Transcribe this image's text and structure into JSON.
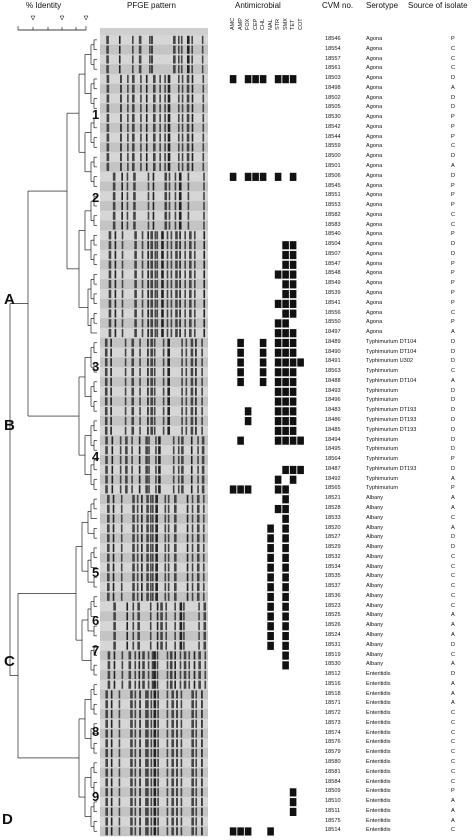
{
  "headers": {
    "identity": "% Identity",
    "pfge": "PFGE pattern",
    "antimicrobial": "Antimicrobial",
    "cvm": "CVM no.",
    "serotype": "Serotype",
    "source": "Source of isolate"
  },
  "antibiotics": [
    "AMC",
    "AMP",
    "FOX",
    "CEP",
    "CHL",
    "NAL",
    "STR",
    "SMX",
    "TET",
    "COT"
  ],
  "clusters": [
    "A",
    "B",
    "C",
    "D"
  ],
  "groups": [
    "1",
    "2",
    "3",
    "4",
    "5",
    "6",
    "7",
    "8",
    "9"
  ],
  "isolates": [
    {
      "cvm": "18546",
      "serotype": "Agona",
      "source": "P",
      "res": []
    },
    {
      "cvm": "18554",
      "serotype": "Agona",
      "source": "C",
      "res": []
    },
    {
      "cvm": "18557",
      "serotype": "Agona",
      "source": "C",
      "res": []
    },
    {
      "cvm": "18561",
      "serotype": "Agona",
      "source": "C",
      "res": []
    },
    {
      "cvm": "18503",
      "serotype": "Agona",
      "source": "D",
      "res": [
        0,
        2,
        3,
        4,
        6,
        7,
        8
      ]
    },
    {
      "cvm": "18498",
      "serotype": "Agona",
      "source": "A",
      "res": []
    },
    {
      "cvm": "18502",
      "serotype": "Agona",
      "source": "D",
      "res": []
    },
    {
      "cvm": "18505",
      "serotype": "Agona",
      "source": "D",
      "res": []
    },
    {
      "cvm": "18530",
      "serotype": "Agona",
      "source": "P",
      "res": []
    },
    {
      "cvm": "18542",
      "serotype": "Agona",
      "source": "P",
      "res": []
    },
    {
      "cvm": "18544",
      "serotype": "Agona",
      "source": "P",
      "res": []
    },
    {
      "cvm": "18559",
      "serotype": "Agona",
      "source": "C",
      "res": []
    },
    {
      "cvm": "18500",
      "serotype": "Agona",
      "source": "D",
      "res": []
    },
    {
      "cvm": "18501",
      "serotype": "Agona",
      "source": "A",
      "res": []
    },
    {
      "cvm": "18506",
      "serotype": "Agona",
      "source": "D",
      "res": [
        0,
        2,
        3,
        4,
        6,
        8
      ]
    },
    {
      "cvm": "18545",
      "serotype": "Agona",
      "source": "P",
      "res": []
    },
    {
      "cvm": "18551",
      "serotype": "Agona",
      "source": "P",
      "res": []
    },
    {
      "cvm": "18553",
      "serotype": "Agona",
      "source": "P",
      "res": []
    },
    {
      "cvm": "18582",
      "serotype": "Agona",
      "source": "C",
      "res": []
    },
    {
      "cvm": "18583",
      "serotype": "Agona",
      "source": "C",
      "res": []
    },
    {
      "cvm": "18540",
      "serotype": "Agona",
      "source": "P",
      "res": []
    },
    {
      "cvm": "18504",
      "serotype": "Agona",
      "source": "D",
      "res": [
        7,
        8
      ]
    },
    {
      "cvm": "18507",
      "serotype": "Agona",
      "source": "D",
      "res": [
        7,
        8
      ]
    },
    {
      "cvm": "18547",
      "serotype": "Agona",
      "source": "P",
      "res": [
        7,
        8
      ]
    },
    {
      "cvm": "18548",
      "serotype": "Agona",
      "source": "P",
      "res": [
        6,
        7,
        8
      ]
    },
    {
      "cvm": "18549",
      "serotype": "Agona",
      "source": "P",
      "res": [
        7,
        8
      ]
    },
    {
      "cvm": "18539",
      "serotype": "Agona",
      "source": "P",
      "res": [
        7,
        8
      ]
    },
    {
      "cvm": "18541",
      "serotype": "Agona",
      "source": "P",
      "res": [
        6,
        7,
        8
      ]
    },
    {
      "cvm": "18556",
      "serotype": "Agona",
      "source": "C",
      "res": [
        7,
        8
      ]
    },
    {
      "cvm": "18550",
      "serotype": "Agona",
      "source": "P",
      "res": [
        6,
        7
      ]
    },
    {
      "cvm": "18497",
      "serotype": "Agona",
      "source": "A",
      "res": [
        6,
        7,
        8
      ]
    },
    {
      "cvm": "18489",
      "serotype": "Typhimurium DT104",
      "source": "D",
      "res": [
        1,
        4,
        6,
        7,
        8
      ]
    },
    {
      "cvm": "18490",
      "serotype": "Typhimurium DT104",
      "source": "D",
      "res": [
        1,
        4,
        6,
        7,
        8
      ]
    },
    {
      "cvm": "18491",
      "serotype": "Typhimurium U302",
      "source": "D",
      "res": [
        1,
        4,
        6,
        7,
        8,
        9
      ]
    },
    {
      "cvm": "18563",
      "serotype": "Typhimurium",
      "source": "C",
      "res": [
        1,
        4,
        6,
        7,
        8
      ]
    },
    {
      "cvm": "18488",
      "serotype": "Typhimurium DT104",
      "source": "A",
      "res": [
        1,
        4,
        6,
        7,
        8
      ]
    },
    {
      "cvm": "18493",
      "serotype": "Typhimurium",
      "source": "D",
      "res": [
        6,
        7,
        8
      ]
    },
    {
      "cvm": "18496",
      "serotype": "Typhimurium",
      "source": "D",
      "res": [
        6,
        7,
        8
      ]
    },
    {
      "cvm": "18483",
      "serotype": "Typhimurium DT193",
      "source": "D",
      "res": [
        2,
        6,
        7,
        8
      ]
    },
    {
      "cvm": "18486",
      "serotype": "Typhimurium DT193",
      "source": "D",
      "res": [
        2,
        6,
        7,
        8
      ]
    },
    {
      "cvm": "18485",
      "serotype": "Typhimurium DT193",
      "source": "D",
      "res": [
        6,
        7,
        8
      ]
    },
    {
      "cvm": "18494",
      "serotype": "Typhimurium",
      "source": "D",
      "res": [
        1,
        6,
        7,
        8,
        9
      ]
    },
    {
      "cvm": "18495",
      "serotype": "Typhimurium",
      "source": "D",
      "res": []
    },
    {
      "cvm": "18564",
      "serotype": "Typhimurium",
      "source": "P",
      "res": []
    },
    {
      "cvm": "18487",
      "serotype": "Typhimurium DT193",
      "source": "D",
      "res": [
        7,
        8,
        9
      ]
    },
    {
      "cvm": "18492",
      "serotype": "Typhimurium",
      "source": "A",
      "res": [
        6,
        8
      ]
    },
    {
      "cvm": "18565",
      "serotype": "Typhimurium",
      "source": "P",
      "res": [
        0,
        1,
        2,
        6,
        7
      ]
    },
    {
      "cvm": "18521",
      "serotype": "Albany",
      "source": "A",
      "res": [
        7
      ]
    },
    {
      "cvm": "18528",
      "serotype": "Albany",
      "source": "A",
      "res": [
        6,
        7
      ]
    },
    {
      "cvm": "18533",
      "serotype": "Albany",
      "source": "C",
      "res": [
        7
      ]
    },
    {
      "cvm": "18520",
      "serotype": "Albany",
      "source": "A",
      "res": [
        5,
        7
      ]
    },
    {
      "cvm": "18527",
      "serotype": "Albany",
      "source": "D",
      "res": [
        5,
        7
      ]
    },
    {
      "cvm": "18529",
      "serotype": "Albany",
      "source": "D",
      "res": [
        5,
        7
      ]
    },
    {
      "cvm": "18532",
      "serotype": "Albany",
      "source": "C",
      "res": [
        5,
        7
      ]
    },
    {
      "cvm": "18534",
      "serotype": "Albany",
      "source": "C",
      "res": [
        5,
        7
      ]
    },
    {
      "cvm": "18535",
      "serotype": "Albany",
      "source": "C",
      "res": [
        5,
        7
      ]
    },
    {
      "cvm": "18537",
      "serotype": "Albany",
      "source": "C",
      "res": [
        5,
        7
      ]
    },
    {
      "cvm": "18536",
      "serotype": "Albany",
      "source": "C",
      "res": [
        5,
        7
      ]
    },
    {
      "cvm": "18523",
      "serotype": "Albany",
      "source": "C",
      "res": [
        5,
        7
      ]
    },
    {
      "cvm": "18525",
      "serotype": "Albany",
      "source": "A",
      "res": [
        5,
        7
      ]
    },
    {
      "cvm": "18526",
      "serotype": "Albany",
      "source": "A",
      "res": [
        5,
        7
      ]
    },
    {
      "cvm": "18524",
      "serotype": "Albany",
      "source": "A",
      "res": [
        5,
        7
      ]
    },
    {
      "cvm": "18531",
      "serotype": "Albany",
      "source": "D",
      "res": [
        5,
        7
      ]
    },
    {
      "cvm": "18519",
      "serotype": "Albany",
      "source": "C",
      "res": [
        7
      ]
    },
    {
      "cvm": "18530",
      "serotype": "Albany",
      "source": "A",
      "res": [
        7
      ]
    },
    {
      "cvm": "18512",
      "serotype": "Enteritidis",
      "source": "D",
      "res": []
    },
    {
      "cvm": "18516",
      "serotype": "Enteritidis",
      "source": "A",
      "res": []
    },
    {
      "cvm": "18518",
      "serotype": "Enteritidis",
      "source": "A",
      "res": []
    },
    {
      "cvm": "18571",
      "serotype": "Enteritidis",
      "source": "A",
      "res": []
    },
    {
      "cvm": "18572",
      "serotype": "Enteritidis",
      "source": "C",
      "res": []
    },
    {
      "cvm": "18573",
      "serotype": "Enteritidis",
      "source": "C",
      "res": []
    },
    {
      "cvm": "18574",
      "serotype": "Enteritidis",
      "source": "C",
      "res": []
    },
    {
      "cvm": "18576",
      "serotype": "Enteritidis",
      "source": "C",
      "res": []
    },
    {
      "cvm": "18579",
      "serotype": "Enteritidis",
      "source": "C",
      "res": []
    },
    {
      "cvm": "18580",
      "serotype": "Enteritidis",
      "source": "C",
      "res": []
    },
    {
      "cvm": "18581",
      "serotype": "Enteritidis",
      "source": "C",
      "res": []
    },
    {
      "cvm": "18584",
      "serotype": "Enteritidis",
      "source": "C",
      "res": []
    },
    {
      "cvm": "18509",
      "serotype": "Enteritidis",
      "source": "P",
      "res": [
        8
      ]
    },
    {
      "cvm": "18510",
      "serotype": "Enteritidis",
      "source": "A",
      "res": [
        8
      ]
    },
    {
      "cvm": "18511",
      "serotype": "Enteritidis",
      "source": "A",
      "res": [
        8
      ]
    },
    {
      "cvm": "18575",
      "serotype": "Enteritidis",
      "source": "A",
      "res": []
    },
    {
      "cvm": "18514",
      "serotype": "Enteritidis",
      "source": "C",
      "res": [
        0,
        1,
        2,
        5
      ]
    }
  ]
}
